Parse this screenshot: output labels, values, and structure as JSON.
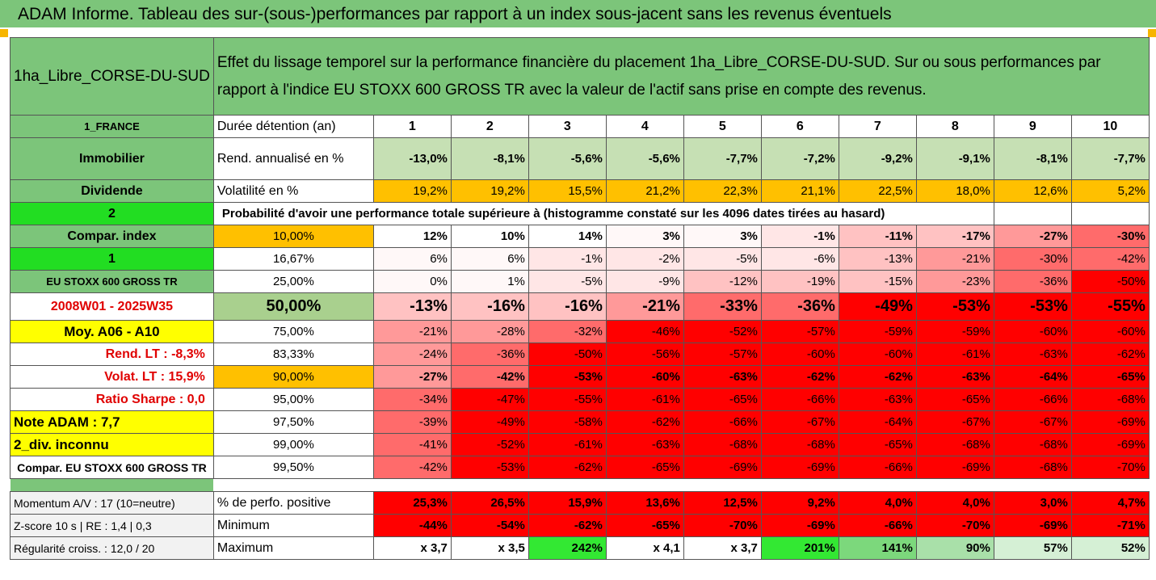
{
  "title": "ADAM Informe. Tableau des sur-(sous-)performances par rapport à un index sous-jacent sans les revenus éventuels",
  "header": {
    "fund": "1ha_Libre_CORSE-DU-SUD",
    "description": "Effet du lissage temporel sur la performance financière du placement 1ha_Libre_CORSE-DU-SUD. Sur ou sous performances par rapport à l'indice EU STOXX 600 GROSS TR avec la valeur de l'actif sans prise en compte des revenus."
  },
  "row_durations": {
    "left": "1_FRANCE",
    "label": "Durée détention (an)",
    "values": [
      "1",
      "2",
      "3",
      "4",
      "5",
      "6",
      "7",
      "8",
      "9",
      "10"
    ]
  },
  "row_rend": {
    "left": "Immobilier",
    "label": "Rend. annualisé en %",
    "values": [
      "-13,0%",
      "-8,1%",
      "-5,6%",
      "-5,6%",
      "-7,7%",
      "-7,2%",
      "-9,2%",
      "-9,1%",
      "-8,1%",
      "-7,7%"
    ]
  },
  "row_vol": {
    "left": "Dividende",
    "label": "Volatilité en %",
    "values": [
      "19,2%",
      "19,2%",
      "15,5%",
      "21,2%",
      "22,3%",
      "21,1%",
      "22,5%",
      "18,0%",
      "12,6%",
      "5,2%"
    ]
  },
  "row_prob": {
    "left": "2",
    "text": "Probabilité d'avoir une performance totale supérieure à (histogramme constaté sur les 4096 dates tirées au hasard)"
  },
  "pct_rows": [
    {
      "left": "Compar. index",
      "pct": "10,00%",
      "values": [
        "12%",
        "10%",
        "14%",
        "3%",
        "3%",
        "-1%",
        "-11%",
        "-17%",
        "-27%",
        "-30%"
      ]
    },
    {
      "left": "1",
      "pct": "16,67%",
      "values": [
        "6%",
        "6%",
        "-1%",
        "-2%",
        "-5%",
        "-6%",
        "-13%",
        "-21%",
        "-30%",
        "-42%"
      ]
    },
    {
      "left": "EU STOXX 600 GROSS TR",
      "pct": "25,00%",
      "values": [
        "0%",
        "1%",
        "-5%",
        "-9%",
        "-12%",
        "-19%",
        "-15%",
        "-23%",
        "-36%",
        "-50%"
      ]
    },
    {
      "left": "2008W01 - 2025W35",
      "pct": "50,00%",
      "values": [
        "-13%",
        "-16%",
        "-16%",
        "-21%",
        "-33%",
        "-36%",
        "-49%",
        "-53%",
        "-53%",
        "-55%"
      ]
    },
    {
      "left": "Moy. A06 - A10",
      "pct": "75,00%",
      "values": [
        "-21%",
        "-28%",
        "-32%",
        "-46%",
        "-52%",
        "-57%",
        "-59%",
        "-59%",
        "-60%",
        "-60%"
      ]
    },
    {
      "left": "Rend. LT :   -8,3%",
      "pct": "83,33%",
      "values": [
        "-24%",
        "-36%",
        "-50%",
        "-56%",
        "-57%",
        "-60%",
        "-60%",
        "-61%",
        "-63%",
        "-62%"
      ]
    },
    {
      "left": "Volat. LT :   15,9%",
      "pct": "90,00%",
      "values": [
        "-27%",
        "-42%",
        "-53%",
        "-60%",
        "-63%",
        "-62%",
        "-62%",
        "-63%",
        "-64%",
        "-65%"
      ]
    },
    {
      "left": "Ratio Sharpe :    0,0",
      "pct": "95,00%",
      "values": [
        "-34%",
        "-47%",
        "-55%",
        "-61%",
        "-65%",
        "-66%",
        "-63%",
        "-65%",
        "-66%",
        "-68%"
      ]
    },
    {
      "left": "Note ADAM : 7,7",
      "pct": "97,50%",
      "values": [
        "-39%",
        "-49%",
        "-58%",
        "-62%",
        "-66%",
        "-67%",
        "-64%",
        "-67%",
        "-67%",
        "-69%"
      ]
    },
    {
      "left": "2_div. inconnu",
      "pct": "99,00%",
      "values": [
        "-41%",
        "-52%",
        "-61%",
        "-63%",
        "-68%",
        "-68%",
        "-65%",
        "-68%",
        "-68%",
        "-69%"
      ]
    },
    {
      "left": "Compar. EU STOXX 600 GROSS TR",
      "pct": "99,50%",
      "values": [
        "-42%",
        "-53%",
        "-62%",
        "-65%",
        "-69%",
        "-69%",
        "-66%",
        "-69%",
        "-68%",
        "-70%"
      ]
    }
  ],
  "stats_rows": [
    {
      "left": "Momentum A/V : 17 (10=neutre)",
      "label": "% de perfo. positive",
      "values": [
        "25,3%",
        "26,5%",
        "15,9%",
        "13,6%",
        "12,5%",
        "9,2%",
        "4,0%",
        "4,0%",
        "3,0%",
        "4,7%"
      ]
    },
    {
      "left": "Z-score 10 s  | RE : 1,4 | 0,3",
      "label": "Minimum",
      "values": [
        "-44%",
        "-54%",
        "-62%",
        "-65%",
        "-70%",
        "-69%",
        "-66%",
        "-70%",
        "-69%",
        "-71%"
      ]
    },
    {
      "left": "Régularité croiss. : 12,0 / 20",
      "label": "Maximum",
      "values": [
        "x 3,7",
        "x 3,5",
        "242%",
        "x 4,1",
        "x 3,7",
        "201%",
        "141%",
        "90%",
        "57%",
        "52%"
      ]
    }
  ],
  "colors": {
    "header_green": "#7cc57a",
    "orange": "#ffc000",
    "yellow": "#ffff00",
    "red": "#ff0000",
    "bright_green": "#22dd22"
  }
}
